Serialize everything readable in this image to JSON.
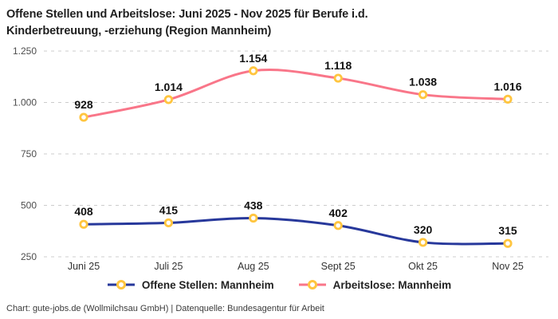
{
  "title": {
    "line1": "Offene Stellen und Arbeitslose: Juni 2025 - Nov 2025 für Berufe i.d.",
    "line2": "Kinderbetreuung, -erziehung (Region Mannheim)"
  },
  "footer": {
    "caption": "Chart: gute-jobs.de (Wollmilchsau GmbH) | Datenquelle: Bundesagentur für Arbeit"
  },
  "colors": {
    "offene_stellen_line": "#27389B",
    "arbeitslose_line": "#F97689",
    "marker_ring": "#FFC53F",
    "marker_fill": "#FFFFFF",
    "gridline": "#CCCCCC",
    "title_text": "#1F1F1F",
    "data_label_text": "#111111"
  },
  "chart_data": {
    "type": "line",
    "title": "Offene Stellen und Arbeitslose: Juni 2025 - Nov 2025 für Berufe i.d. Kinderbetreuung, -erziehung (Region Mannheim)",
    "categories": [
      "Juni 25",
      "Juli 25",
      "Aug 25",
      "Sept 25",
      "Okt 25",
      "Nov 25"
    ],
    "series": [
      {
        "name": "Offene Stellen: Mannheim",
        "color": "#27389B",
        "values": [
          408,
          415,
          438,
          402,
          320,
          315
        ],
        "labels": [
          "408",
          "415",
          "438",
          "402",
          "320",
          "315"
        ]
      },
      {
        "name": "Arbeitslose: Mannheim",
        "color": "#F97689",
        "values": [
          928,
          1014,
          1154,
          1118,
          1038,
          1016
        ],
        "labels": [
          "928",
          "1.014",
          "1.154",
          "1.118",
          "1.038",
          "1.016"
        ]
      }
    ],
    "yticks": [
      {
        "value": 250,
        "label": "250"
      },
      {
        "value": 500,
        "label": "500"
      },
      {
        "value": 750,
        "label": "750"
      },
      {
        "value": 1000,
        "label": "1.000"
      },
      {
        "value": 1250,
        "label": "1.250"
      }
    ],
    "ylim": [
      250,
      1250
    ],
    "xlabel": "",
    "ylabel": "",
    "grid": "horizontal-dashed",
    "legend_position": "bottom",
    "marker": {
      "fill": "#FFFFFF",
      "stroke": "#FFC53F"
    }
  }
}
